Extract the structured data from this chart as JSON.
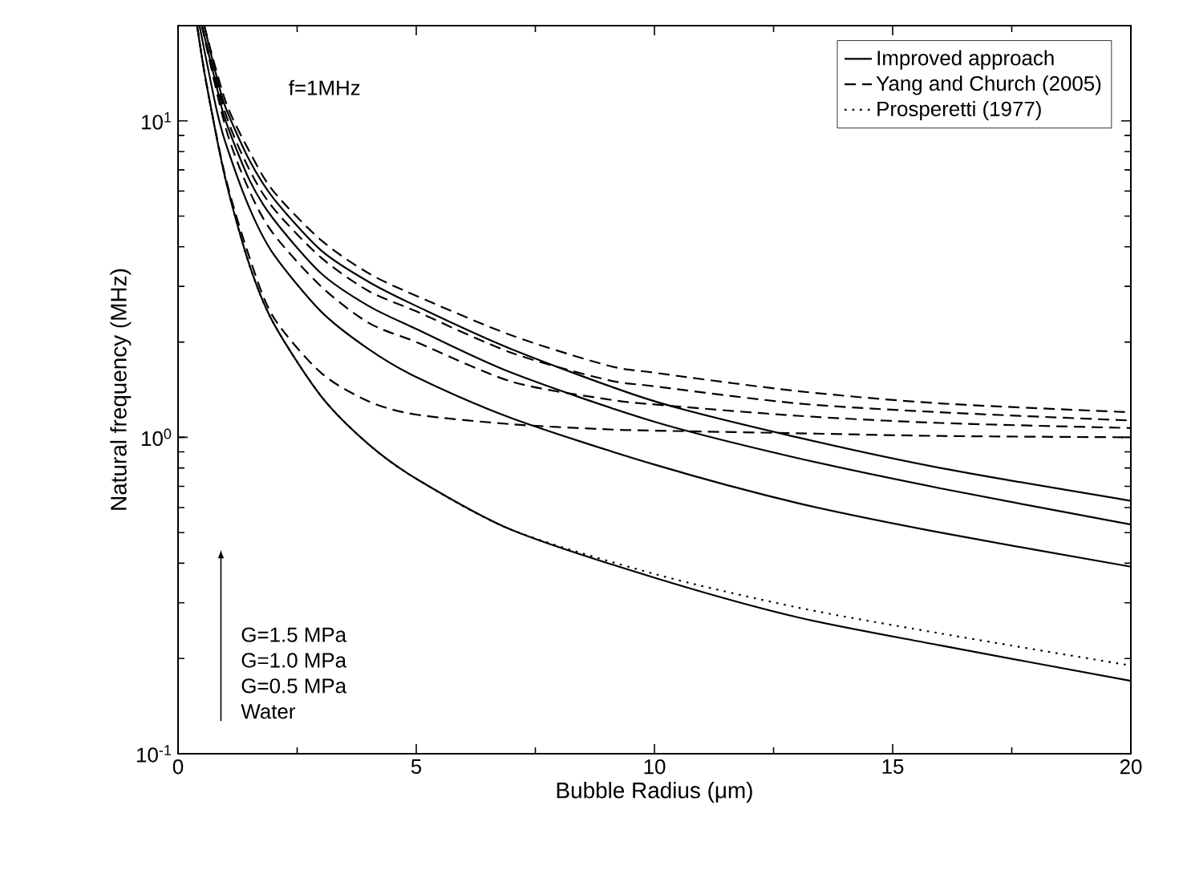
{
  "chart_data": {
    "type": "line",
    "xlabel": "Bubble Radius (μm)",
    "ylabel": "Natural frequency (MHz)",
    "log": "y",
    "xlim": [
      0,
      20
    ],
    "ylim": [
      0.1,
      20
    ],
    "xticks": [
      0,
      5,
      10,
      15,
      20
    ],
    "yticks": [
      {
        "value": 0.1,
        "label": "10$^{-1}$"
      },
      {
        "value": 1,
        "label": "10$^{0}$"
      },
      {
        "value": 10,
        "label": "10$^{1}$"
      }
    ],
    "legend": "top right",
    "annotations": [
      "f=1MHz",
      "G=1.5 MPa",
      "G=1.0 MPa",
      "G=0.5 MPa",
      "Water"
    ],
    "series": [
      {
        "name": "Improved approach",
        "color": "#000000",
        "line_style": "solid",
        "x": [
          0.4,
          0.6,
          1,
          1.5,
          2,
          3,
          4,
          5,
          7,
          10,
          13,
          16,
          20
        ],
        "values": [
          20,
          13,
          6.5,
          3.5,
          2.3,
          1.35,
          0.95,
          0.74,
          0.51,
          0.36,
          0.27,
          0.22,
          0.17
        ]
      },
      {
        "color": "#000000",
        "line_style": "solid",
        "x": [
          0.45,
          0.8,
          1,
          1.5,
          2,
          3,
          4,
          5,
          7,
          10,
          13,
          16,
          20
        ],
        "values": [
          20,
          11,
          8.5,
          5.3,
          3.8,
          2.5,
          1.9,
          1.55,
          1.15,
          0.82,
          0.62,
          0.5,
          0.39
        ]
      },
      {
        "color": "#000000",
        "line_style": "solid",
        "x": [
          0.5,
          0.8,
          1,
          1.5,
          2,
          3,
          4,
          5,
          7,
          10,
          13,
          16,
          20
        ],
        "values": [
          20,
          13,
          10,
          6.5,
          4.9,
          3.3,
          2.6,
          2.2,
          1.6,
          1.12,
          0.86,
          0.69,
          0.53
        ]
      },
      {
        "color": "#000000",
        "line_style": "solid",
        "x": [
          0.55,
          0.8,
          1,
          1.5,
          2,
          3,
          4,
          5,
          7,
          10,
          13,
          16,
          20
        ],
        "values": [
          20,
          14,
          11,
          7.5,
          5.7,
          3.9,
          3.1,
          2.6,
          1.9,
          1.3,
          1.0,
          0.8,
          0.63
        ]
      },
      {
        "name": "Yang and Church (2005)",
        "color": "#000000",
        "line_style": "dashed",
        "x": [
          0.55,
          1,
          1.5,
          2,
          3,
          4,
          5,
          7,
          9,
          10,
          13,
          16,
          20
        ],
        "values": [
          20,
          11.5,
          8,
          6,
          4.2,
          3.3,
          2.8,
          2.1,
          1.69,
          1.6,
          1.4,
          1.28,
          1.2
        ]
      },
      {
        "color": "#000000",
        "line_style": "dashed",
        "x": [
          0.5,
          1,
          1.5,
          2,
          3,
          4,
          5,
          7,
          9,
          10,
          13,
          16,
          20
        ],
        "values": [
          20,
          10.5,
          7,
          5.3,
          3.7,
          2.9,
          2.5,
          1.85,
          1.52,
          1.45,
          1.28,
          1.2,
          1.13
        ]
      },
      {
        "color": "#000000",
        "line_style": "dashed",
        "x": [
          0.5,
          1,
          1.5,
          2,
          3,
          4,
          5,
          7,
          9,
          10,
          13,
          16,
          20
        ],
        "values": [
          20,
          9.5,
          6,
          4.4,
          3.0,
          2.3,
          2.0,
          1.5,
          1.32,
          1.27,
          1.17,
          1.11,
          1.07
        ]
      },
      {
        "color": "#000000",
        "line_style": "dashed",
        "x": [
          0.4,
          0.6,
          1,
          1.5,
          2,
          3,
          4,
          5,
          7,
          9,
          10,
          13,
          16,
          20
        ],
        "values": [
          20,
          13,
          6.6,
          3.7,
          2.4,
          1.6,
          1.3,
          1.18,
          1.1,
          1.06,
          1.05,
          1.03,
          1.01,
          1.0
        ]
      },
      {
        "name": "Prosperetti (1977)",
        "color": "#000000",
        "line_style": "dotted",
        "x": [
          0.4,
          0.6,
          1,
          1.5,
          2,
          3,
          4,
          5,
          7,
          10,
          13,
          16,
          20
        ],
        "values": [
          20,
          13,
          6.5,
          3.5,
          2.3,
          1.35,
          0.95,
          0.74,
          0.51,
          0.37,
          0.29,
          0.24,
          0.19
        ]
      }
    ]
  }
}
